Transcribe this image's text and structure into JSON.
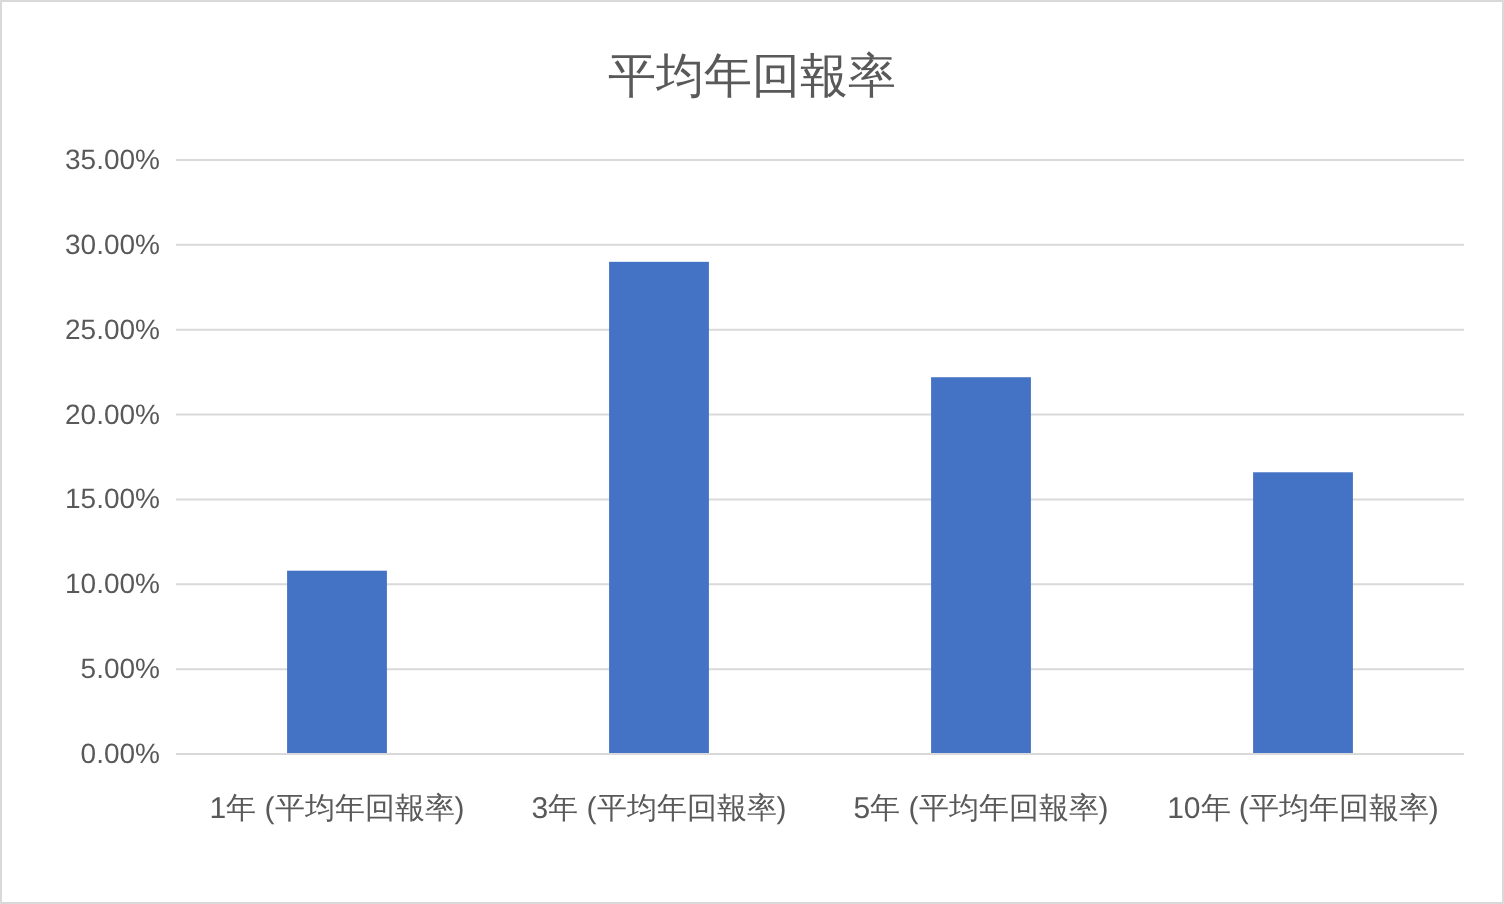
{
  "chart_data": {
    "type": "bar",
    "title": "平均年回報率",
    "categories": [
      "1年 (平均年回報率)",
      "3年 (平均年回報率)",
      "5年 (平均年回報率)",
      "10年 (平均年回報率)"
    ],
    "values": [
      10.8,
      29.0,
      22.2,
      16.6
    ],
    "color": "#4472c4",
    "ylim": [
      0,
      35
    ],
    "yticks": [
      {
        "value": 0,
        "label": "0.00%"
      },
      {
        "value": 5,
        "label": "5.00%"
      },
      {
        "value": 10,
        "label": "10.00%"
      },
      {
        "value": 15,
        "label": "15.00%"
      },
      {
        "value": 20,
        "label": "20.00%"
      },
      {
        "value": 25,
        "label": "25.00%"
      },
      {
        "value": 30,
        "label": "30.00%"
      },
      {
        "value": 35,
        "label": "35.00%"
      }
    ],
    "grid": "y"
  }
}
